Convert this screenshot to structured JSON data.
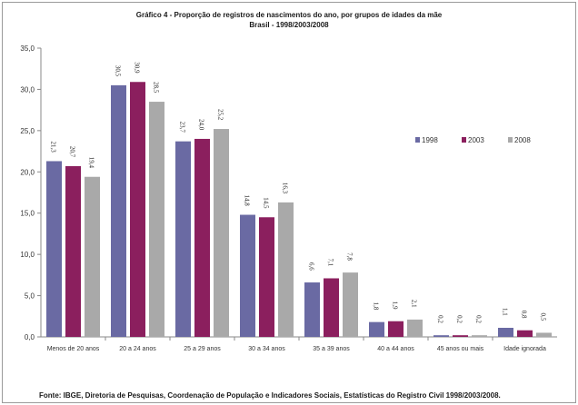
{
  "title_line1": "Gráfico 4 - Proporção de registros de nascimentos do ano, por grupos de idades da mãe",
  "title_line2": "Brasil - 1998/2003/2008",
  "source": "Fonte: IBGE, Diretoria de Pesquisas,  Coordenação de População e Indicadores Sociais,  Estatísticas do Registro Civil  1998/2003/2008.",
  "chart_data": {
    "type": "bar",
    "title": "Gráfico 4 - Proporção de registros de nascimentos do ano, por grupos de idades da mãe",
    "subtitle": "Brasil - 1998/2003/2008",
    "categories": [
      "Menos de 20 anos",
      "20 a 24 anos",
      "25 a 29 anos",
      "30 a 34 anos",
      "35 a 39 anos",
      "40 a 44 anos",
      "45 anos ou mais",
      "Idade ignorada"
    ],
    "series": [
      {
        "name": "1998",
        "color": "#6a6aa3",
        "values": [
          21.3,
          30.5,
          23.7,
          14.8,
          6.6,
          1.8,
          0.2,
          1.1
        ]
      },
      {
        "name": "2003",
        "color": "#8b1f5e",
        "values": [
          20.7,
          30.9,
          24.0,
          14.5,
          7.1,
          1.9,
          0.2,
          0.8
        ]
      },
      {
        "name": "2008",
        "color": "#a9a9a9",
        "values": [
          19.4,
          28.5,
          25.2,
          16.3,
          7.8,
          2.1,
          0.2,
          0.5
        ]
      }
    ],
    "data_labels": [
      [
        "21,3",
        "30,5",
        "23,7",
        "14,8",
        "6,6",
        "1,8",
        "0,2",
        "1,1"
      ],
      [
        "20,7",
        "30,9",
        "24,0",
        "14,5",
        "7,1",
        "1,9",
        "0,2",
        "0,8"
      ],
      [
        "19,4",
        "28,5",
        "25,2",
        "16,3",
        "7,8",
        "2,1",
        "0,2",
        "0,5"
      ]
    ],
    "yticks": [
      "0,0",
      "5,0",
      "10,0",
      "15,0",
      "20,0",
      "25,0",
      "30,0",
      "35,0"
    ],
    "ylim": [
      0,
      35
    ],
    "xlabel": "",
    "ylabel": "",
    "grid": false,
    "legend": "right"
  }
}
